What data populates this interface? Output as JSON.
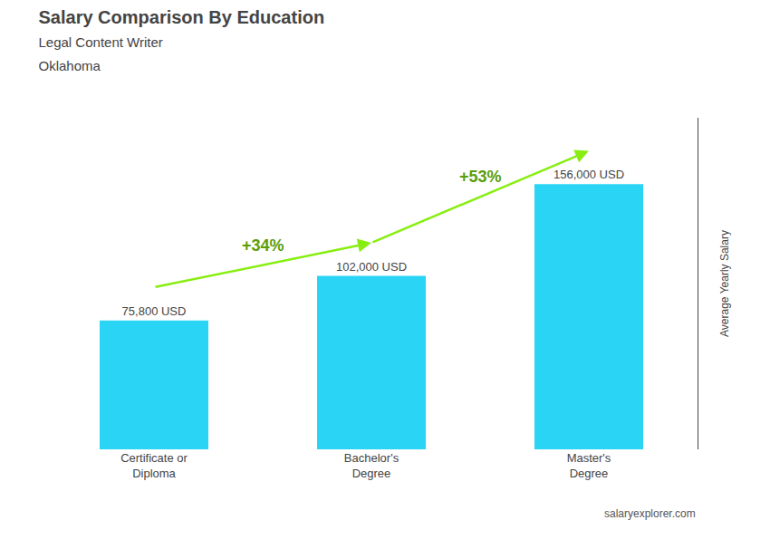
{
  "chart_data": {
    "type": "bar",
    "title": "Salary Comparison By Education",
    "subtitle": [
      "Legal Content Writer",
      "Oklahoma"
    ],
    "categories": [
      "Certificate or\nDiploma",
      "Bachelor's\nDegree",
      "Master's\nDegree"
    ],
    "values": [
      75800,
      102000,
      156000
    ],
    "value_labels": [
      "75,800 USD",
      "102,000 USD",
      "156,000 USD"
    ],
    "data_labels": true,
    "color": "#29d4f5",
    "annotations": [
      "+34%",
      "+53%",
      "salaryexplorer.com"
    ],
    "ylabel": "Average Yearly Salary",
    "ylim": [
      0,
      195000
    ],
    "tick_labels": "x",
    "grid": false
  }
}
